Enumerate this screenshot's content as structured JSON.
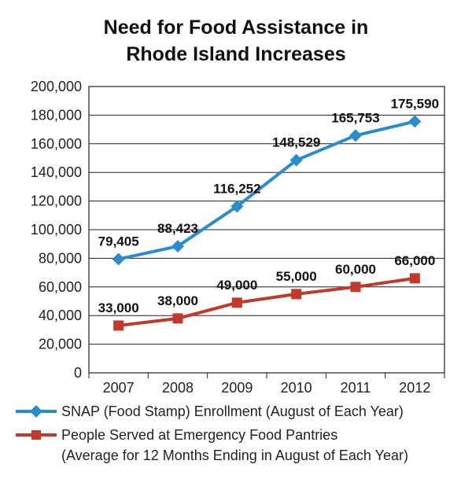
{
  "chart_data": {
    "type": "line",
    "title_lines": [
      "Need for Food Assistance in",
      "Rhode Island Increases"
    ],
    "categories": [
      "2007",
      "2008",
      "2009",
      "2010",
      "2011",
      "2012"
    ],
    "ylim": [
      0,
      200000
    ],
    "yticks": [
      0,
      20000,
      40000,
      60000,
      80000,
      100000,
      120000,
      140000,
      160000,
      180000,
      200000
    ],
    "ytick_labels": [
      "0",
      "20,000",
      "40,000",
      "60,000",
      "80,000",
      "100,000",
      "120,000",
      "140,000",
      "160,000",
      "180,000",
      "200,000"
    ],
    "grid": true,
    "legend_position": "bottom",
    "series": [
      {
        "name": "SNAP (Food Stamp) Enrollment (August of Each Year)",
        "name_lines": [
          "SNAP (Food Stamp) Enrollment (August of Each Year)"
        ],
        "values": [
          79405,
          88423,
          116252,
          148529,
          165753,
          175590
        ],
        "labels": [
          "79,405",
          "88,423",
          "116,252",
          "148,529",
          "165,753",
          "175,590"
        ],
        "color": "#2a8ccc",
        "marker": "diamond"
      },
      {
        "name": "People Served at Emergency Food Pantries (Average for 12 Months Ending in August of Each Year)",
        "name_lines": [
          "People Served at Emergency Food Pantries",
          "(Average for 12 Months Ending in August of Each Year)"
        ],
        "values": [
          33000,
          38000,
          49000,
          55000,
          60000,
          66000
        ],
        "labels": [
          "33,000",
          "38,000",
          "49,000",
          "55,000",
          "60,000",
          "66,000"
        ],
        "color": "#c0392b",
        "marker": "square"
      }
    ]
  }
}
